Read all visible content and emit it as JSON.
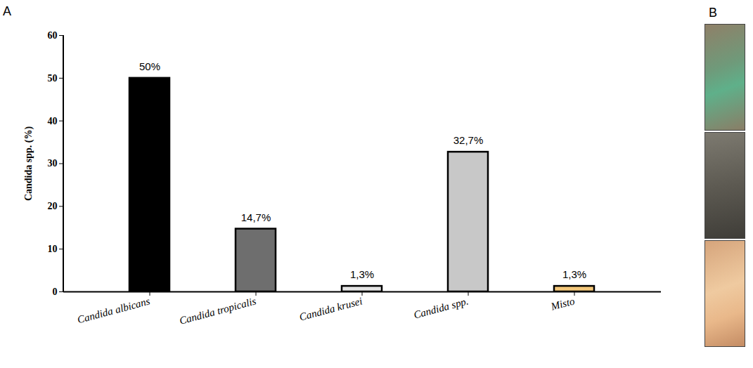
{
  "chart_data": {
    "type": "bar",
    "panel_label": "A",
    "ylabel": "Candida spp. (%)",
    "categories": [
      "Candida albicans",
      "Candida tropicalis",
      "Candida krusei",
      "Candida spp.",
      "Misto"
    ],
    "values": [
      50,
      14.7,
      1.3,
      32.7,
      1.3
    ],
    "value_labels": [
      "50%",
      "14,7%",
      "1,3%",
      "32,7%",
      "1,3%"
    ],
    "colors": [
      "#000000",
      "#6e6e6e",
      "#e3e3e3",
      "#c8c8c8",
      "#f3c77a"
    ],
    "ylim": [
      0,
      60
    ],
    "yticks": [
      0,
      10,
      20,
      30,
      40,
      50,
      60
    ],
    "data_labels": true,
    "grid": false
  },
  "panel_b": {
    "panel_label": "B"
  }
}
